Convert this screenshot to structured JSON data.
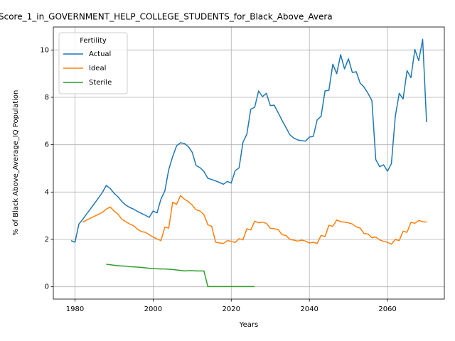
{
  "chart_data": {
    "type": "line",
    "title": "Score_1_in_GOVERNMENT_HELP_COLLEGE_STUDENTS_for_Black_Above_Avera",
    "x_label": "Years",
    "y_label": "% of Black Above_Average_IQ Population",
    "legend_title": "Fertility",
    "legend_position": "upper left",
    "grid": true,
    "xlim": [
      1974.45,
      2074.55
    ],
    "xticks": [
      1980,
      2000,
      2020,
      2040,
      2060
    ],
    "ylim": [
      -0.52,
      10.97
    ],
    "yticks": [
      0,
      2,
      4,
      6,
      8,
      10
    ],
    "x": [
      1979,
      1980,
      1981,
      1982,
      1983,
      1984,
      1985,
      1986,
      1987,
      1988,
      1989,
      1990,
      1991,
      1992,
      1993,
      1994,
      1995,
      1996,
      1997,
      1998,
      1999,
      2000,
      2001,
      2002,
      2003,
      2004,
      2005,
      2006,
      2007,
      2008,
      2009,
      2010,
      2011,
      2012,
      2013,
      2014,
      2015,
      2016,
      2017,
      2018,
      2019,
      2020,
      2021,
      2022,
      2023,
      2024,
      2025,
      2026,
      2027,
      2028,
      2029,
      2030,
      2031,
      2032,
      2033,
      2034,
      2035,
      2036,
      2037,
      2038,
      2039,
      2040,
      2041,
      2042,
      2043,
      2044,
      2045,
      2046,
      2047,
      2048,
      2049,
      2050,
      2051,
      2052,
      2053,
      2054,
      2055,
      2056,
      2057,
      2058,
      2059,
      2060,
      2061,
      2062,
      2063,
      2064,
      2065,
      2066,
      2067,
      2068,
      2069,
      2070
    ],
    "series": [
      {
        "name": "Actual",
        "color": "#1f77b4",
        "values": [
          1.95,
          1.88,
          2.65,
          2.85,
          3.08,
          3.3,
          3.52,
          3.75,
          3.98,
          4.28,
          4.15,
          3.95,
          3.8,
          3.6,
          3.45,
          3.35,
          3.28,
          3.18,
          3.1,
          3.02,
          2.93,
          3.2,
          3.12,
          3.7,
          4.05,
          4.95,
          5.5,
          5.95,
          6.08,
          6.05,
          5.92,
          5.68,
          5.12,
          5.03,
          4.87,
          4.58,
          4.53,
          4.47,
          4.4,
          4.33,
          4.45,
          4.38,
          4.9,
          5.02,
          6.1,
          6.45,
          7.5,
          7.58,
          8.27,
          8.03,
          8.17,
          7.65,
          7.67,
          7.35,
          7.03,
          6.73,
          6.42,
          6.28,
          6.2,
          6.17,
          6.15,
          6.32,
          6.35,
          7.05,
          7.2,
          8.27,
          8.3,
          9.4,
          9.0,
          9.8,
          9.2,
          9.63,
          9.05,
          9.08,
          8.6,
          8.43,
          8.17,
          7.87,
          5.37,
          5.07,
          5.15,
          4.88,
          5.2,
          7.2,
          8.17,
          7.93,
          9.13,
          8.83,
          10.02,
          9.55,
          10.45,
          6.95
        ]
      },
      {
        "name": "Ideal",
        "color": "#ff7f0e",
        "values": [
          null,
          null,
          null,
          2.73,
          2.82,
          2.9,
          2.98,
          3.06,
          3.14,
          3.28,
          3.37,
          3.2,
          3.07,
          2.85,
          2.75,
          2.65,
          2.58,
          2.43,
          2.33,
          2.3,
          2.2,
          2.1,
          2.02,
          1.95,
          2.52,
          2.48,
          3.57,
          3.48,
          3.85,
          3.7,
          3.6,
          3.45,
          3.25,
          3.2,
          3.05,
          2.62,
          2.55,
          1.88,
          1.85,
          1.83,
          1.95,
          1.92,
          1.87,
          2.03,
          1.98,
          2.45,
          2.4,
          2.77,
          2.7,
          2.73,
          2.68,
          2.47,
          2.45,
          2.42,
          2.2,
          2.17,
          2.0,
          1.97,
          1.93,
          1.97,
          1.93,
          1.85,
          1.88,
          1.83,
          2.17,
          2.12,
          2.6,
          2.55,
          2.82,
          2.75,
          2.73,
          2.7,
          2.65,
          2.53,
          2.48,
          2.25,
          2.23,
          2.07,
          2.1,
          1.98,
          1.92,
          1.88,
          1.8,
          2.0,
          1.95,
          2.35,
          2.3,
          2.72,
          2.68,
          2.8,
          2.75,
          2.73
        ]
      },
      {
        "name": "Sterile",
        "color": "#2ca02c",
        "values": [
          null,
          null,
          null,
          null,
          null,
          null,
          null,
          null,
          null,
          0.95,
          0.93,
          0.91,
          0.89,
          0.88,
          0.87,
          0.85,
          0.84,
          0.83,
          0.82,
          0.8,
          0.78,
          0.77,
          0.76,
          0.75,
          0.75,
          0.74,
          0.73,
          0.71,
          0.69,
          0.67,
          0.68,
          0.68,
          0.67,
          0.67,
          0.67,
          0.01,
          0.01,
          0.01,
          0.01,
          0.01,
          0.01,
          0.01,
          0.01,
          0.01,
          0.01,
          0.01,
          0.01,
          0.01,
          null,
          null,
          null,
          null,
          null,
          null,
          null,
          null,
          null,
          null,
          null,
          null,
          null,
          null,
          null,
          null,
          null,
          null,
          null,
          null,
          null,
          null,
          null,
          null,
          null,
          null,
          null,
          null,
          null,
          null,
          null,
          null,
          null,
          null,
          null,
          null,
          null,
          null,
          null,
          null,
          null,
          null,
          null,
          null
        ]
      }
    ]
  }
}
